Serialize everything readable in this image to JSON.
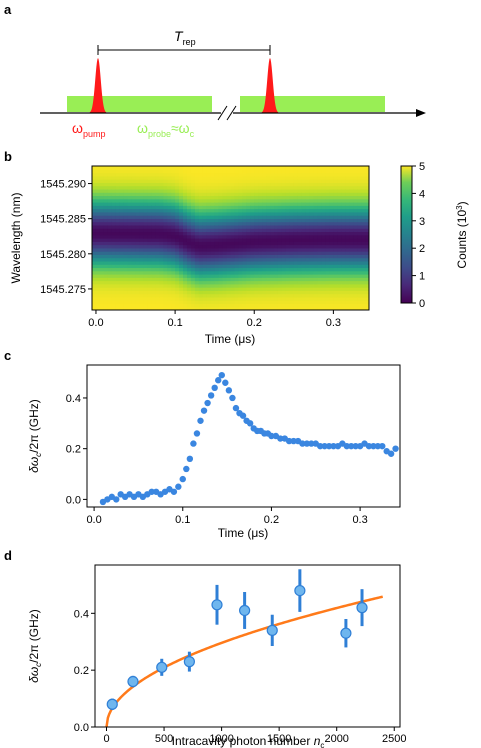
{
  "panels": {
    "a": {
      "letter": "a",
      "period_label": "T",
      "period_sub": "rep",
      "pump_label": "ω",
      "pump_sub": "pump",
      "probe_label": "ω",
      "probe_sub": "probe",
      "probe_approx": "≈ω",
      "probe_c_sub": "c",
      "colors": {
        "pump": "#ff1a1a",
        "probe": "#99ee55"
      }
    },
    "b": {
      "letter": "b"
    },
    "c": {
      "letter": "c"
    },
    "d": {
      "letter": "d"
    }
  },
  "chart_data": [
    {
      "type": "heatmap",
      "panel": "b",
      "xlabel": "Time (μs)",
      "ylabel": "Wavelength (nm)",
      "xlim": [
        -0.005,
        0.345
      ],
      "ylim": [
        1545.272,
        1545.2925
      ],
      "xticks": [
        0.0,
        0.1,
        0.2,
        0.3
      ],
      "xtick_labels": [
        "0.0",
        "0.1",
        "0.2",
        "0.3"
      ],
      "yticks": [
        1545.275,
        1545.28,
        1545.285,
        1545.29
      ],
      "ytick_labels": [
        "1545.275",
        "1545.280",
        "1545.285",
        "1545.290"
      ],
      "colorbar": {
        "label": "Counts (10",
        "label_exp": "3",
        "label_end": ")",
        "min": 0,
        "max": 5,
        "ticks": [
          0,
          1,
          2,
          3,
          4,
          5
        ],
        "tick_labels": [
          "0",
          "1",
          "2",
          "3",
          "4",
          "5"
        ],
        "colormap": "viridis"
      },
      "resonance_center": {
        "time": [
          0.0,
          0.08,
          0.1,
          0.115,
          0.13,
          0.15,
          0.2,
          0.25,
          0.3,
          0.34
        ],
        "wavelength": [
          1545.283,
          1545.2829,
          1545.2826,
          1545.2818,
          1545.2812,
          1545.2813,
          1545.2818,
          1545.282,
          1545.2821,
          1545.2821
        ]
      },
      "linewidth_nm": 0.0045,
      "peak_counts": 5,
      "min_counts": 0.1
    },
    {
      "type": "scatter",
      "panel": "c",
      "xlabel": "Time (μs)",
      "ylabel": "δω",
      "ylabel_sub": "c",
      "ylabel_end": "/2π (GHz)",
      "xlim": [
        -0.008,
        0.345
      ],
      "ylim": [
        -0.03,
        0.53
      ],
      "xticks": [
        0.0,
        0.1,
        0.2,
        0.3
      ],
      "xtick_labels": [
        "0.0",
        "0.1",
        "0.2",
        "0.3"
      ],
      "yticks": [
        0.0,
        0.2,
        0.4
      ],
      "ytick_labels": [
        "0.0",
        "0.2",
        "0.4"
      ],
      "color": "#3a86e0",
      "x": [
        0.01,
        0.015,
        0.02,
        0.025,
        0.03,
        0.035,
        0.04,
        0.045,
        0.05,
        0.055,
        0.06,
        0.065,
        0.07,
        0.075,
        0.08,
        0.085,
        0.09,
        0.095,
        0.1,
        0.104,
        0.108,
        0.112,
        0.116,
        0.12,
        0.124,
        0.128,
        0.132,
        0.136,
        0.14,
        0.144,
        0.148,
        0.152,
        0.156,
        0.16,
        0.164,
        0.168,
        0.172,
        0.176,
        0.18,
        0.184,
        0.188,
        0.192,
        0.196,
        0.2,
        0.205,
        0.21,
        0.215,
        0.22,
        0.225,
        0.23,
        0.235,
        0.24,
        0.245,
        0.25,
        0.255,
        0.26,
        0.265,
        0.27,
        0.275,
        0.28,
        0.285,
        0.29,
        0.295,
        0.3,
        0.305,
        0.31,
        0.315,
        0.32,
        0.325,
        0.33,
        0.335,
        0.34
      ],
      "y": [
        -0.01,
        0.0,
        0.01,
        0.0,
        0.02,
        0.01,
        0.02,
        0.01,
        0.02,
        0.01,
        0.02,
        0.03,
        0.03,
        0.02,
        0.03,
        0.04,
        0.03,
        0.05,
        0.08,
        0.12,
        0.16,
        0.22,
        0.26,
        0.31,
        0.35,
        0.38,
        0.41,
        0.44,
        0.47,
        0.49,
        0.46,
        0.43,
        0.4,
        0.36,
        0.34,
        0.33,
        0.31,
        0.3,
        0.28,
        0.27,
        0.27,
        0.26,
        0.26,
        0.25,
        0.25,
        0.24,
        0.24,
        0.23,
        0.23,
        0.23,
        0.22,
        0.22,
        0.22,
        0.22,
        0.21,
        0.21,
        0.21,
        0.21,
        0.21,
        0.22,
        0.21,
        0.21,
        0.21,
        0.21,
        0.22,
        0.21,
        0.21,
        0.21,
        0.21,
        0.19,
        0.18,
        0.2
      ]
    },
    {
      "type": "scatter",
      "panel": "d",
      "xlabel": "Intracavity photon number ",
      "xlabel_var": "n",
      "xlabel_sub": "c",
      "ylabel": "δω",
      "ylabel_sub": "c",
      "ylabel_end": "/2π (GHz)",
      "xlim": [
        -100,
        2550
      ],
      "ylim": [
        0.0,
        0.57
      ],
      "xticks": [
        0,
        500,
        1000,
        1500,
        2000,
        2500
      ],
      "xtick_labels": [
        "0",
        "500",
        "1000",
        "1500",
        "2000",
        "2500"
      ],
      "yticks": [
        0.0,
        0.2,
        0.4
      ],
      "ytick_labels": [
        "0.0",
        "0.2",
        "0.4"
      ],
      "marker_color": "#6fb6ee",
      "error_color": "#2f7fd6",
      "fit_color": "#ff7a1a",
      "x": [
        50,
        230,
        480,
        720,
        960,
        1200,
        1440,
        1680,
        2080,
        2220
      ],
      "y": [
        0.08,
        0.16,
        0.21,
        0.23,
        0.43,
        0.41,
        0.34,
        0.48,
        0.33,
        0.42
      ],
      "yerr": [
        0.02,
        0.02,
        0.03,
        0.035,
        0.07,
        0.065,
        0.055,
        0.075,
        0.05,
        0.065
      ],
      "fit": {
        "model": "a*sqrt(n)",
        "a": 0.00936,
        "x_range": [
          0,
          2400
        ]
      }
    }
  ]
}
